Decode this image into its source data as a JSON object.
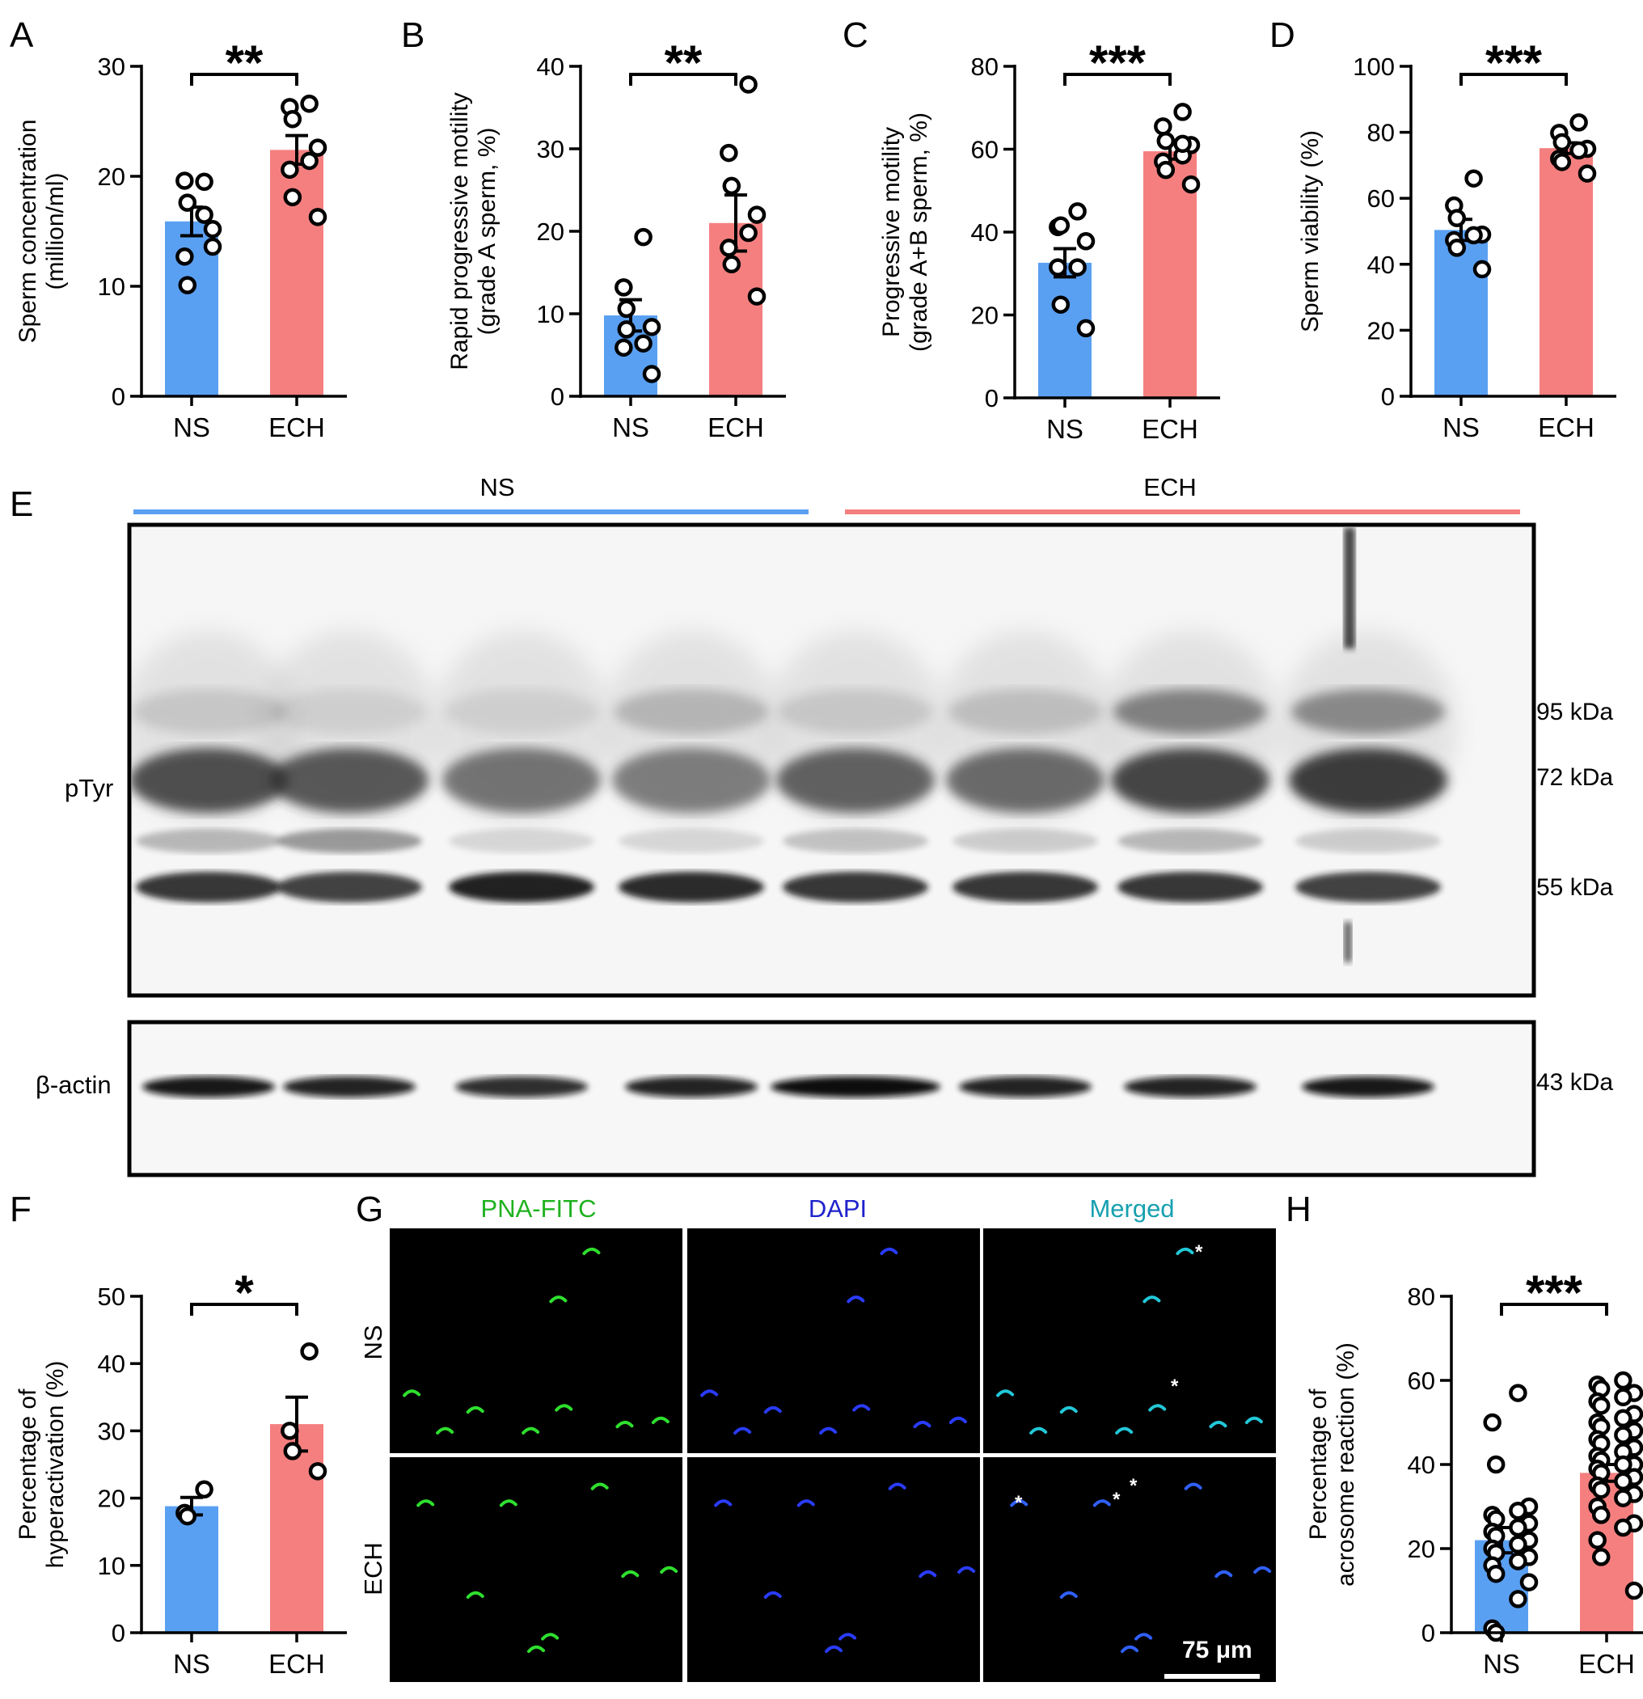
{
  "colors": {
    "ns": "#5aa0f2",
    "ech": "#f57f7f",
    "gel_bg": "#f4f4f4",
    "band": "#2a2a2a"
  },
  "chart_data": [
    {
      "panel": "A",
      "type": "bar",
      "categories": [
        "NS",
        "ECH"
      ],
      "ylabel_lines": [
        "Sperm concentration",
        "(million/ml)"
      ],
      "ylim": [
        0,
        30
      ],
      "ticks": [
        0,
        10,
        20,
        30
      ],
      "significance": "**",
      "series": [
        {
          "category": "NS",
          "mean": 15.9,
          "sem": 1.3,
          "points": [
            19.5,
            19.6,
            17.6,
            15.2,
            16.5,
            12.7,
            10.1,
            13.6
          ]
        },
        {
          "category": "ECH",
          "mean": 22.4,
          "sem": 1.3,
          "points": [
            26.6,
            26.3,
            25.2,
            22.6,
            21.4,
            20.6,
            18.1,
            16.3
          ]
        }
      ]
    },
    {
      "panel": "B",
      "type": "bar",
      "categories": [
        "NS",
        "ECH"
      ],
      "ylabel_lines": [
        "Rapid progressive motility",
        "(grade A sperm, %)"
      ],
      "ylim": [
        0,
        40
      ],
      "ticks": [
        0,
        10,
        20,
        30,
        40
      ],
      "significance": "**",
      "series": [
        {
          "category": "NS",
          "mean": 9.8,
          "sem": 1.9,
          "points": [
            19.3,
            13.2,
            10.6,
            8.4,
            6.4,
            5.9,
            8.1,
            2.7
          ]
        },
        {
          "category": "ECH",
          "mean": 21.0,
          "sem": 3.4,
          "points": [
            37.8,
            29.5,
            25.5,
            22.0,
            19.8,
            18.0,
            16.0,
            12.1
          ]
        }
      ]
    },
    {
      "panel": "C",
      "type": "bar",
      "categories": [
        "NS",
        "ECH"
      ],
      "ylabel_lines": [
        "Progressive motility",
        "(grade A+B sperm, %)"
      ],
      "ylim": [
        0,
        80
      ],
      "ticks": [
        0,
        20,
        40,
        60,
        80
      ],
      "significance": "***",
      "series": [
        {
          "category": "NS",
          "mean": 32.6,
          "sem": 3.4,
          "points": [
            45.0,
            41.2,
            41.6,
            37.8,
            31.5,
            31.5,
            22.5,
            16.8
          ]
        },
        {
          "category": "ECH",
          "mean": 59.5,
          "sem": 1.9,
          "points": [
            69.0,
            65.5,
            62.0,
            61.0,
            58.5,
            57.0,
            55.0,
            51.5,
            61.3
          ]
        }
      ]
    },
    {
      "panel": "D",
      "type": "bar",
      "categories": [
        "NS",
        "ECH"
      ],
      "ylabel_lines": [
        "Sperm viability (%)"
      ],
      "ylim": [
        0,
        100
      ],
      "ticks": [
        0,
        20,
        40,
        60,
        80,
        100
      ],
      "significance": "***",
      "series": [
        {
          "category": "NS",
          "mean": 50.4,
          "sem": 3.2,
          "points": [
            66.0,
            57.8,
            54.0,
            49.0,
            48.8,
            47.3,
            45.0,
            38.5
          ]
        },
        {
          "category": "ECH",
          "mean": 75.2,
          "sem": 1.6,
          "points": [
            83.0,
            79.8,
            77.0,
            75.0,
            74.5,
            72.0,
            71.0,
            67.5
          ]
        }
      ]
    },
    {
      "panel": "F",
      "type": "bar",
      "categories": [
        "NS",
        "ECH"
      ],
      "ylabel_lines": [
        "Percentage of",
        "hyperactivation (%)"
      ],
      "ylim": [
        0,
        50
      ],
      "ticks": [
        0,
        10,
        20,
        30,
        40,
        50
      ],
      "significance": "*",
      "series": [
        {
          "category": "NS",
          "mean": 18.8,
          "sem": 1.3,
          "points": [
            21.3,
            17.8,
            17.3
          ]
        },
        {
          "category": "ECH",
          "mean": 31.0,
          "sem": 4.0,
          "points": [
            41.8,
            30.0,
            27.0,
            24.0
          ]
        }
      ]
    },
    {
      "panel": "H",
      "type": "bar",
      "categories": [
        "NS",
        "ECH"
      ],
      "ylabel_lines": [
        "Percentage of",
        "acrosome reaction (%)"
      ],
      "ylim": [
        0,
        80
      ],
      "ticks": [
        0,
        20,
        40,
        60,
        80
      ],
      "significance": "***",
      "series": [
        {
          "category": "NS",
          "mean": 22.0,
          "sem": 3.0,
          "points": [
            57.0,
            50.0,
            40.0,
            30.0,
            29.0,
            28.0,
            27.0,
            26.0,
            25.0,
            24.0,
            23.0,
            22.0,
            21.0,
            20.0,
            19.0,
            18.0,
            17.0,
            16.0,
            14.0,
            12.0,
            8.0,
            1.0,
            0.0
          ]
        },
        {
          "category": "ECH",
          "mean": 38.0,
          "sem": 2.0,
          "points": [
            60.0,
            59.0,
            58.0,
            57.0,
            56.0,
            55.0,
            54.0,
            52.0,
            51.0,
            50.0,
            49.0,
            48.0,
            47.0,
            46.0,
            45.0,
            44.0,
            43.0,
            42.0,
            41.0,
            40.0,
            40.0,
            39.0,
            38.0,
            37.0,
            36.0,
            35.0,
            34.0,
            33.0,
            32.0,
            30.0,
            28.0,
            26.0,
            25.0,
            22.0,
            18.0,
            10.0
          ]
        }
      ]
    }
  ],
  "panel_labels": {
    "a": "A",
    "b": "B",
    "c": "C",
    "d": "D",
    "e": "E",
    "f": "F",
    "g": "G",
    "h": "H"
  },
  "western": {
    "group_ns": "NS",
    "group_ech": "ECH",
    "ptyr_label": "pTyr",
    "actin_label": "β-actin",
    "markers": [
      "95 kDa",
      "72 kDa",
      "55 kDa"
    ],
    "actin_marker": "43 kDa"
  },
  "micrographs": {
    "columns": [
      "PNA-FITC",
      "DAPI",
      "Merged"
    ],
    "column_colors": [
      "#1fb21f",
      "#1e22cc",
      "#16a0b0"
    ],
    "rows": [
      "NS",
      "ECH"
    ],
    "scale_bar": "75 μm",
    "marker": "*"
  }
}
